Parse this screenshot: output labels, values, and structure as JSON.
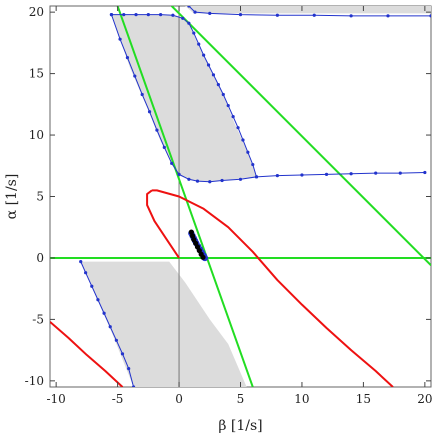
{
  "chart_data": {
    "type": "line",
    "title": "",
    "xlabel": "β [1/s]",
    "ylabel": "α [1/s]",
    "xlim": [
      -10.5,
      20.5
    ],
    "ylim": [
      -10.5,
      20.5
    ],
    "xticks": [
      -10,
      -5,
      0,
      5,
      10,
      15,
      20
    ],
    "yticks": [
      -10,
      -5,
      0,
      5,
      10,
      15,
      20
    ],
    "xtick_labels": [
      "-10",
      "-5",
      "0",
      "5",
      "10",
      "15",
      "20"
    ],
    "ytick_labels": [
      "-10",
      "-5",
      "0",
      "5",
      "10",
      "15",
      "20"
    ],
    "grid": false,
    "colors": {
      "shaded_region": "#dcdcdc",
      "blue_curve": "#2233cc",
      "green_lines": "#22dd22",
      "red_curves": "#ee1111",
      "black_points": "#000000",
      "vertical_reference": "#777777"
    },
    "green_lines": [
      {
        "points": [
          [
            -10.5,
            0
          ],
          [
            20.5,
            0
          ]
        ]
      },
      {
        "points": [
          [
            -5,
            20.5
          ],
          [
            6.0,
            -10.5
          ]
        ]
      },
      {
        "points": [
          [
            -0.6,
            20.5
          ],
          [
            20.5,
            -0.6
          ]
        ]
      }
    ],
    "vertical_reference_x": 0,
    "shaded_regions": [
      {
        "points": [
          [
            -5.5,
            19.8
          ],
          [
            -1.0,
            19.8
          ],
          [
            -0.2,
            19.7
          ],
          [
            0.7,
            19.3
          ],
          [
            1.5,
            17.5
          ],
          [
            2.5,
            15.5
          ],
          [
            3.5,
            13.5
          ],
          [
            4.5,
            11.0
          ],
          [
            5.5,
            8.8
          ],
          [
            6.3,
            6.6
          ],
          [
            4.5,
            6.4
          ],
          [
            2.5,
            6.2
          ],
          [
            1.5,
            6.2
          ],
          [
            0.0,
            6.7
          ],
          [
            -1.5,
            9.5
          ],
          [
            -2.5,
            12.0
          ],
          [
            -4.0,
            15.5
          ],
          [
            -5.5,
            19.8
          ]
        ]
      },
      {
        "points": [
          [
            -8.0,
            -0.3
          ],
          [
            -4.5,
            -0.3
          ],
          [
            -0.8,
            -0.3
          ],
          [
            0.5,
            -2.0
          ],
          [
            2.5,
            -5.0
          ],
          [
            4.0,
            -7.0
          ],
          [
            5.5,
            -10.5
          ],
          [
            -3.7,
            -10.5
          ],
          [
            -5.5,
            -6.0
          ],
          [
            -8.0,
            -0.3
          ]
        ]
      },
      {
        "points": [
          [
            0.5,
            20.5
          ],
          [
            20.5,
            20.5
          ],
          [
            20.5,
            19.9
          ],
          [
            1.2,
            19.9
          ],
          [
            0.5,
            20.5
          ]
        ]
      }
    ],
    "series": [
      {
        "color": "blue_curve",
        "points": [
          [
            -5.5,
            19.8
          ],
          [
            -4.5,
            19.8
          ],
          [
            -3.5,
            19.8
          ],
          [
            -2.5,
            19.8
          ],
          [
            -1.5,
            19.8
          ],
          [
            -0.5,
            19.75
          ],
          [
            0.3,
            19.5
          ],
          [
            0.8,
            19.1
          ],
          [
            1.2,
            18.3
          ],
          [
            1.6,
            17.4
          ],
          [
            2.0,
            16.5
          ],
          [
            2.4,
            15.7
          ],
          [
            2.8,
            14.9
          ],
          [
            3.2,
            14.1
          ],
          [
            3.6,
            13.3
          ],
          [
            4.0,
            12.4
          ],
          [
            4.4,
            11.5
          ],
          [
            4.8,
            10.6
          ],
          [
            5.2,
            9.6
          ],
          [
            5.6,
            8.6
          ],
          [
            6.0,
            7.6
          ],
          [
            6.3,
            6.6
          ],
          [
            5.0,
            6.4
          ],
          [
            3.5,
            6.3
          ],
          [
            2.5,
            6.2
          ],
          [
            1.5,
            6.25
          ],
          [
            0.8,
            6.4
          ],
          [
            0.0,
            6.8
          ],
          [
            -0.6,
            7.7
          ],
          [
            -1.2,
            9.0
          ],
          [
            -1.8,
            10.4
          ],
          [
            -2.4,
            11.9
          ],
          [
            -3.0,
            13.3
          ],
          [
            -3.6,
            14.8
          ],
          [
            -4.2,
            16.3
          ],
          [
            -4.8,
            17.8
          ],
          [
            -5.5,
            19.8
          ]
        ]
      },
      {
        "color": "blue_curve",
        "points": [
          [
            6.3,
            6.6
          ],
          [
            8.0,
            6.7
          ],
          [
            10.0,
            6.75
          ],
          [
            12.0,
            6.8
          ],
          [
            14.0,
            6.85
          ],
          [
            16.0,
            6.9
          ],
          [
            18.0,
            6.9
          ],
          [
            20.0,
            6.95
          ]
        ]
      },
      {
        "color": "blue_curve",
        "points": [
          [
            0.8,
            20.5
          ],
          [
            1.3,
            20.0
          ],
          [
            2.5,
            19.9
          ],
          [
            5.0,
            19.8
          ],
          [
            8.0,
            19.75
          ],
          [
            11.0,
            19.75
          ],
          [
            14.0,
            19.7
          ],
          [
            17.0,
            19.7
          ],
          [
            20.5,
            19.7
          ]
        ]
      },
      {
        "color": "blue_curve",
        "points": [
          [
            -8.0,
            -0.3
          ],
          [
            -7.6,
            -1.2
          ],
          [
            -7.1,
            -2.3
          ],
          [
            -6.6,
            -3.4
          ],
          [
            -6.1,
            -4.5
          ],
          [
            -5.6,
            -5.6
          ],
          [
            -5.1,
            -6.7
          ],
          [
            -4.6,
            -7.8
          ],
          [
            -4.1,
            -9.0
          ],
          [
            -3.7,
            -10.5
          ]
        ]
      },
      {
        "color": "red_curves",
        "points": [
          [
            -2.2,
            5.5
          ],
          [
            -1.8,
            5.5
          ],
          [
            0.0,
            5.0
          ],
          [
            2.0,
            4.0
          ],
          [
            4.0,
            2.5
          ],
          [
            6.0,
            0.5
          ],
          [
            8.0,
            -1.8
          ],
          [
            10.0,
            -3.8
          ],
          [
            12.0,
            -5.7
          ],
          [
            14.0,
            -7.5
          ],
          [
            16.0,
            -9.2
          ],
          [
            17.4,
            -10.5
          ]
        ]
      },
      {
        "color": "red_curves",
        "points": [
          [
            -2.2,
            5.5
          ],
          [
            -2.6,
            5.2
          ],
          [
            -2.6,
            4.3
          ],
          [
            -2.0,
            3.0
          ],
          [
            -1.0,
            1.5
          ],
          [
            0.0,
            0.0
          ]
        ]
      },
      {
        "color": "red_curves",
        "points": [
          [
            -10.5,
            -5.2
          ],
          [
            -9.0,
            -6.5
          ],
          [
            -7.5,
            -7.9
          ],
          [
            -6.0,
            -9.2
          ],
          [
            -4.6,
            -10.5
          ]
        ]
      }
    ],
    "black_points": [
      [
        1.0,
        2.1
      ],
      [
        1.1,
        1.8
      ],
      [
        1.2,
        1.5
      ],
      [
        1.35,
        1.2
      ],
      [
        1.5,
        0.9
      ],
      [
        1.65,
        0.6
      ],
      [
        1.8,
        0.3
      ],
      [
        1.95,
        0.05
      ]
    ],
    "dense_blue_cluster": [
      [
        1.0,
        2.0
      ],
      [
        1.1,
        1.8
      ],
      [
        1.2,
        1.6
      ],
      [
        1.3,
        1.4
      ],
      [
        1.4,
        1.2
      ],
      [
        1.55,
        0.95
      ],
      [
        1.7,
        0.7
      ],
      [
        1.85,
        0.45
      ],
      [
        2.0,
        0.2
      ],
      [
        2.1,
        0.0
      ]
    ]
  }
}
